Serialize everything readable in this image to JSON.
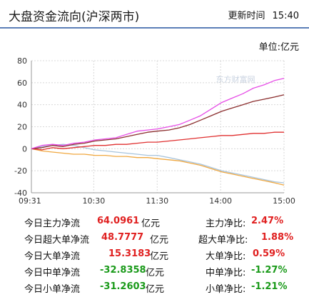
{
  "header": {
    "title": "大盘资金流向(沪深两市)",
    "update_label": "更新时间",
    "update_time": "15:40"
  },
  "unit_label": "单位:亿元",
  "watermark": "东方财富网",
  "chart_data": {
    "type": "line",
    "xlabel": "",
    "ylabel": "",
    "ylim": [
      -40,
      80
    ],
    "yticks": [
      -40,
      -20,
      0,
      20,
      40,
      60,
      80
    ],
    "xticks": [
      "09:31",
      "10:30",
      "11:30",
      "14:00",
      "15:00"
    ],
    "xtick_minutes": [
      0,
      59,
      119,
      179,
      239
    ],
    "x_minutes": [
      0,
      10,
      20,
      30,
      40,
      50,
      60,
      70,
      80,
      90,
      100,
      110,
      119,
      130,
      140,
      150,
      160,
      170,
      180,
      190,
      200,
      210,
      220,
      230,
      239
    ],
    "grid": true,
    "series": [
      {
        "color": "#e64de6",
        "values": [
          0,
          3,
          4,
          3,
          5,
          6,
          8,
          9,
          10,
          13,
          16,
          17,
          18,
          20,
          22,
          26,
          30,
          36,
          42,
          46,
          50,
          55,
          58,
          62,
          64
        ]
      },
      {
        "color": "#8b2e2e",
        "values": [
          0,
          1,
          3,
          2,
          4,
          5,
          7,
          8,
          9,
          11,
          13,
          15,
          16,
          17,
          19,
          22,
          26,
          30,
          34,
          37,
          40,
          43,
          45,
          47,
          49
        ]
      },
      {
        "color": "#e03030",
        "values": [
          0,
          -1,
          1,
          0,
          1,
          2,
          3,
          3,
          4,
          4,
          5,
          6,
          6,
          7,
          8,
          9,
          10,
          11,
          12,
          12,
          13,
          14,
          14,
          15,
          15
        ]
      },
      {
        "color": "#f0a840",
        "values": [
          0,
          -2,
          -3,
          -4,
          -5,
          -5,
          -6,
          -6,
          -7,
          -7,
          -8,
          -8,
          -9,
          -10,
          -11,
          -13,
          -15,
          -18,
          -21,
          -23,
          -25,
          -27,
          -29,
          -31,
          -33
        ]
      },
      {
        "color": "#a8c4dc",
        "values": [
          0,
          2,
          3,
          4,
          3,
          1,
          -1,
          -2,
          -3,
          -4,
          -5,
          -6,
          -6,
          -8,
          -10,
          -12,
          -14,
          -17,
          -20,
          -22,
          -24,
          -26,
          -28,
          -30,
          -31
        ]
      }
    ]
  },
  "stats": {
    "rows": [
      {
        "label": "今日主力净流",
        "value": "64.0961",
        "unit": "亿元",
        "ratio_label": "主力净比:",
        "ratio_value": "2.47%",
        "sign": "pos"
      },
      {
        "label": "今日超大单净流",
        "value": "48.7777",
        "unit": "亿元",
        "ratio_label": "超大单净比:",
        "ratio_value": "1.88%",
        "sign": "pos"
      },
      {
        "label": "今日大单净流",
        "value": "15.3183",
        "unit": "亿元",
        "ratio_label": "大单净比:",
        "ratio_value": "0.59%",
        "sign": "pos"
      },
      {
        "label": "今日中单净流",
        "value": "-32.8358",
        "unit": "亿元",
        "ratio_label": "中单净比:",
        "ratio_value": "-1.27%",
        "sign": "neg"
      },
      {
        "label": "今日小单净流",
        "value": "-31.2603",
        "unit": "亿元",
        "ratio_label": "小单净比:",
        "ratio_value": "-1.21%",
        "sign": "neg"
      }
    ]
  }
}
